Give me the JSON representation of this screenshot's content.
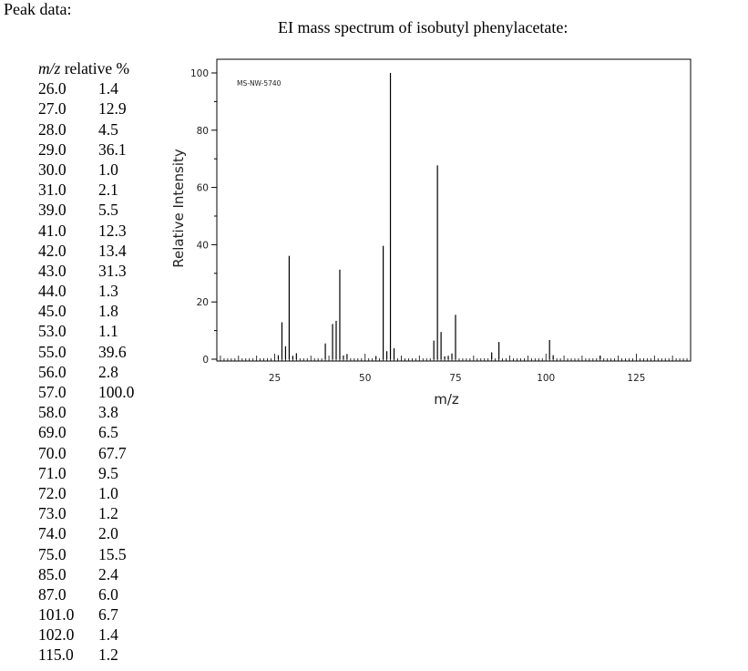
{
  "page": {
    "heading": "Peak data:",
    "spectrum_title": "EI mass spectrum of isobutyl phenylacetate:"
  },
  "table": {
    "mz_header": "m/z",
    "rel_header": "relative %",
    "rows": [
      {
        "mz": "26.0",
        "rel": "1.4"
      },
      {
        "mz": "27.0",
        "rel": "12.9"
      },
      {
        "mz": "28.0",
        "rel": "4.5"
      },
      {
        "mz": "29.0",
        "rel": "36.1"
      },
      {
        "mz": "30.0",
        "rel": "1.0"
      },
      {
        "mz": "31.0",
        "rel": "2.1"
      },
      {
        "mz": "39.0",
        "rel": "5.5"
      },
      {
        "mz": "41.0",
        "rel": "12.3"
      },
      {
        "mz": "42.0",
        "rel": "13.4"
      },
      {
        "mz": "43.0",
        "rel": "31.3"
      },
      {
        "mz": "44.0",
        "rel": "1.3"
      },
      {
        "mz": "45.0",
        "rel": "1.8"
      },
      {
        "mz": "53.0",
        "rel": "1.1"
      },
      {
        "mz": "55.0",
        "rel": "39.6"
      },
      {
        "mz": "56.0",
        "rel": "2.8"
      },
      {
        "mz": "57.0",
        "rel": "100.0"
      },
      {
        "mz": "58.0",
        "rel": "3.8"
      },
      {
        "mz": "69.0",
        "rel": "6.5"
      },
      {
        "mz": "70.0",
        "rel": "67.7"
      },
      {
        "mz": "71.0",
        "rel": "9.5"
      },
      {
        "mz": "72.0",
        "rel": "1.0"
      },
      {
        "mz": "73.0",
        "rel": "1.2"
      },
      {
        "mz": "74.0",
        "rel": "2.0"
      },
      {
        "mz": "75.0",
        "rel": "15.5"
      },
      {
        "mz": "85.0",
        "rel": "2.4"
      },
      {
        "mz": "87.0",
        "rel": "6.0"
      },
      {
        "mz": "101.0",
        "rel": "6.7"
      },
      {
        "mz": "102.0",
        "rel": "1.4"
      },
      {
        "mz": "115.0",
        "rel": "1.2"
      }
    ]
  },
  "chart_data": {
    "type": "bar",
    "title": "EI mass spectrum of isobutyl phenylacetate:",
    "xlabel": "m/z",
    "ylabel": "Relative Intensity",
    "annotation": "MS-NW-5740",
    "xlim": [
      9,
      140
    ],
    "ylim": [
      0,
      100
    ],
    "x_ticks": [
      25,
      50,
      75,
      100,
      125
    ],
    "x_tick_labels": [
      "25",
      "50",
      "75",
      "100",
      "125"
    ],
    "y_ticks": [
      0,
      20,
      40,
      60,
      80,
      100
    ],
    "y_tick_labels": [
      "0",
      "20",
      "40",
      "60",
      "80",
      "100"
    ],
    "grid": false,
    "x": [
      26,
      27,
      28,
      29,
      30,
      31,
      39,
      41,
      42,
      43,
      44,
      45,
      53,
      55,
      56,
      57,
      58,
      69,
      70,
      71,
      72,
      73,
      74,
      75,
      85,
      87,
      101,
      102,
      115
    ],
    "values": [
      1.4,
      12.9,
      4.5,
      36.1,
      1.0,
      2.1,
      5.5,
      12.3,
      13.4,
      31.3,
      1.3,
      1.8,
      1.1,
      39.6,
      2.8,
      100.0,
      3.8,
      6.5,
      67.7,
      9.5,
      1.0,
      1.2,
      2.0,
      15.5,
      2.4,
      6.0,
      6.7,
      1.4,
      1.2
    ]
  }
}
